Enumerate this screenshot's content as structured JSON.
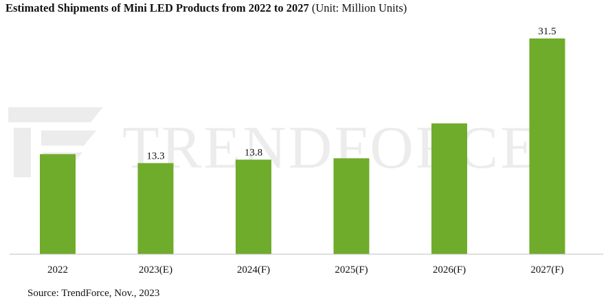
{
  "title": "Estimated Shipments of Mini LED Products from 2022 to 2027",
  "subtitle": "(Unit: Million Units)",
  "source": "Source: TrendForce, Nov., 2023",
  "watermark": "TRENDFORCE",
  "colors": {
    "bar": "#6fac2b",
    "axis": "#bfbfbf",
    "watermark": "#ececec"
  },
  "chart_data": {
    "type": "bar",
    "categories": [
      "2022",
      "2023(E)",
      "2024(F)",
      "2025(F)",
      "2026(F)",
      "2027(F)"
    ],
    "values": [
      14.6,
      13.3,
      13.8,
      14.0,
      19.1,
      31.5
    ],
    "data_labels": [
      "",
      "13.3",
      "13.8",
      "",
      "",
      "31.5"
    ],
    "title": "Estimated Shipments of Mini LED Products from 2022 to 2027",
    "xlabel": "",
    "ylabel": "",
    "ylim": [
      0,
      32.5
    ],
    "grid": false,
    "legend": "none"
  }
}
